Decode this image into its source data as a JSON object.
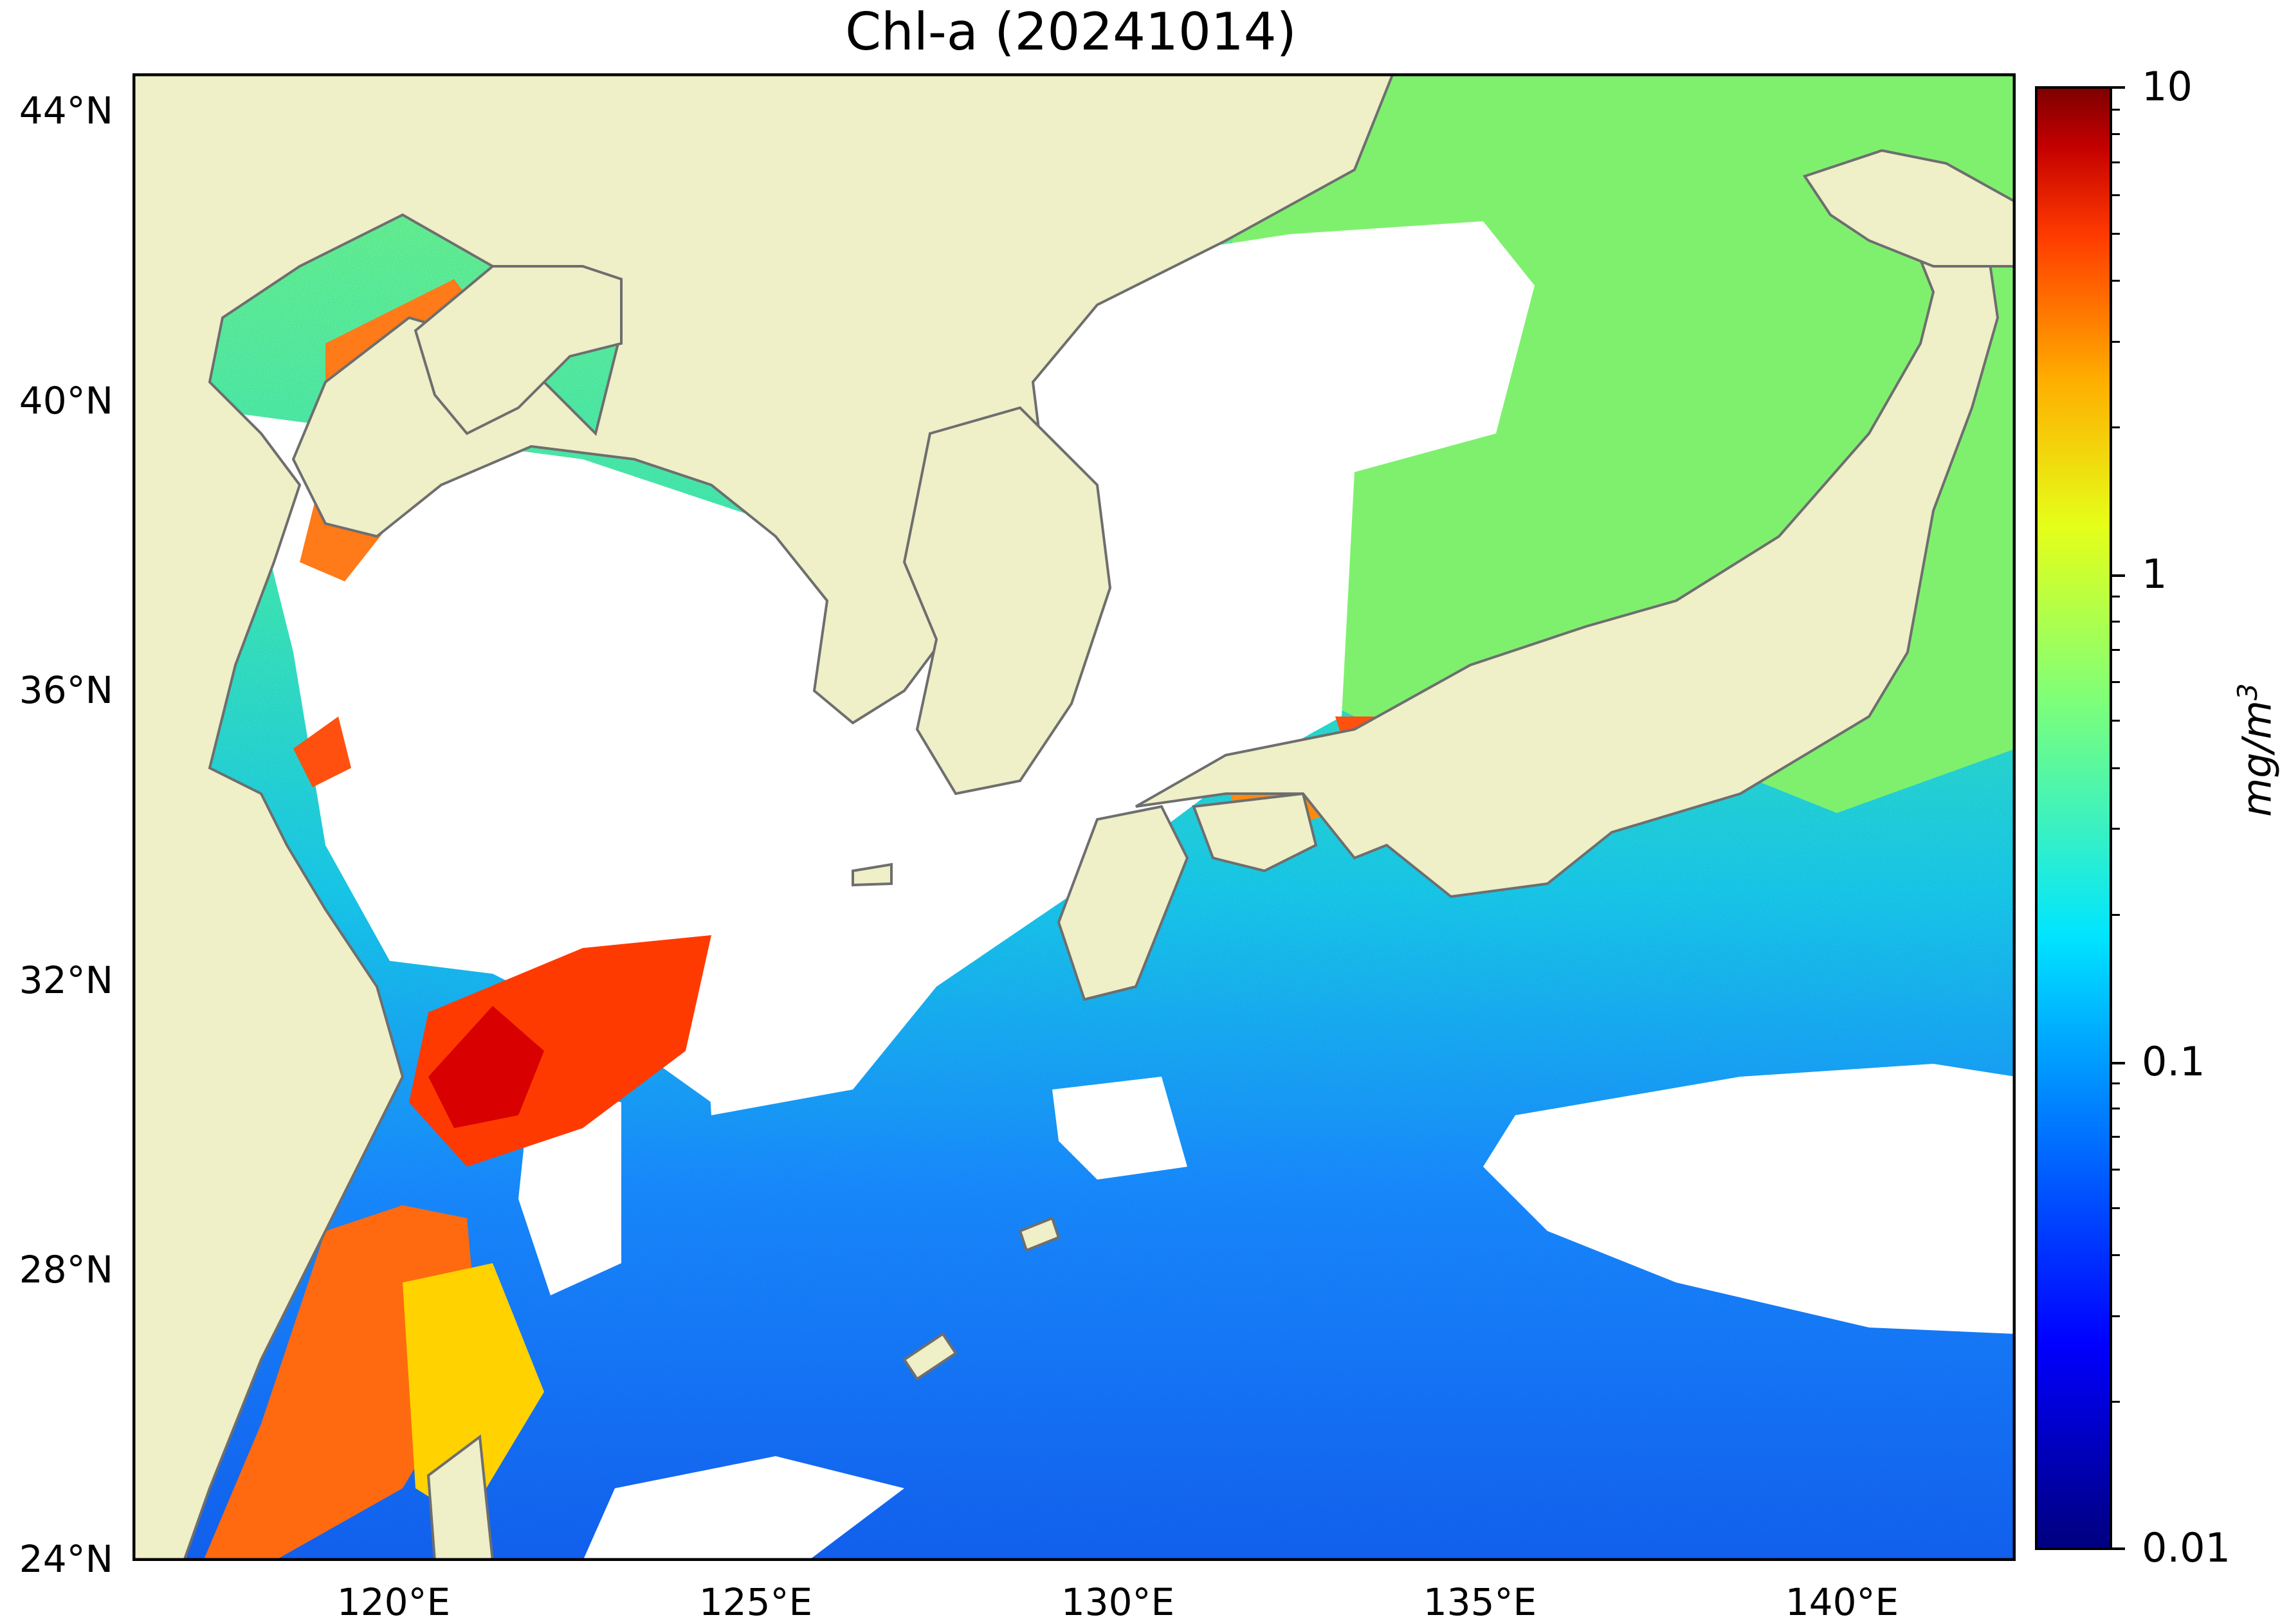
{
  "title": "Chl-a (20241014)",
  "lat_ticks": [
    "44°N",
    "40°N",
    "36°N",
    "32°N",
    "28°N",
    "24°N"
  ],
  "lon_ticks": [
    "120°E",
    "125°E",
    "130°E",
    "135°E",
    "140°E"
  ],
  "colorbar": {
    "ticks": [
      "10",
      "1",
      "0.1",
      "0.01"
    ],
    "unit": "mg/m",
    "unit_superscript": "3",
    "scale": "log",
    "range": [
      0.01,
      10
    ],
    "colormap": "jet"
  },
  "colors": {
    "land": "#efefc8",
    "coast": "#6e6e6e",
    "no_data": "#ffffff"
  },
  "extent": {
    "lon": [
      117,
      143
    ],
    "lat": [
      24,
      44.5
    ]
  }
}
